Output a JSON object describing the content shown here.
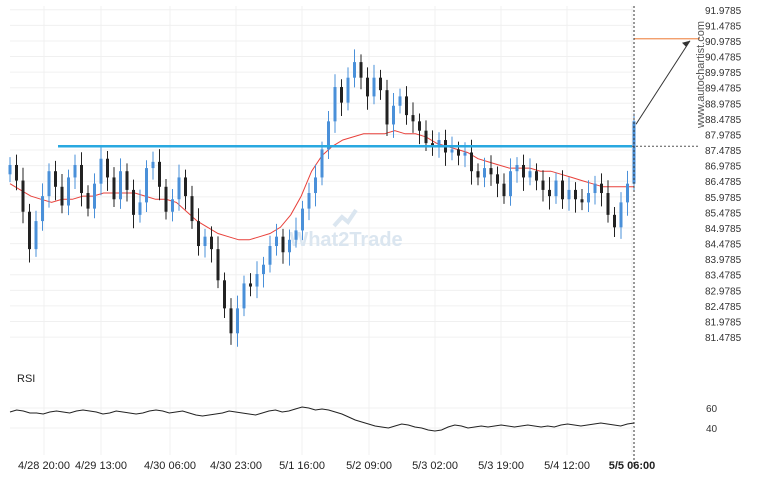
{
  "watermark": {
    "main": "What2Trade",
    "side": "www.autochartist.com"
  },
  "rsi": {
    "label": "RSI",
    "ticks": [
      "60",
      "40"
    ],
    "ylim": [
      20,
      80
    ]
  },
  "colors": {
    "candle": "#4a90d9",
    "candle_dark": "#222222",
    "level": "#29a8e0",
    "ma": "#e8413b",
    "target": "#f0925a",
    "rsi_line": "#222222"
  },
  "chart_data": {
    "type": "candlestick",
    "title": "",
    "ylim": [
      81.0,
      92.1
    ],
    "y_tick_labels": [
      "91.9785",
      "91.4785",
      "90.9785",
      "90.4785",
      "89.9785",
      "89.4785",
      "88.9785",
      "88.4785",
      "87.9785",
      "87.4785",
      "86.9785",
      "86.4785",
      "85.9785",
      "85.4785",
      "84.9785",
      "84.4785",
      "83.9785",
      "83.4785",
      "82.9785",
      "82.4785",
      "81.9785",
      "81.4785"
    ],
    "x_tick_labels": [
      "4/28 20:00",
      "4/29 13:00",
      "4/30 06:00",
      "4/30 23:00",
      "5/1 16:00",
      "5/2 09:00",
      "5/3 02:00",
      "5/3 19:00",
      "5/4 12:00",
      "5/5 06:00"
    ],
    "resistance_level": 87.6,
    "target_level": 91.05,
    "series": [
      {
        "values": [
          87.0,
          86.5,
          85.5,
          84.3,
          85.2,
          86.0,
          86.8,
          86.3,
          85.7,
          86.6,
          87.0,
          86.1,
          85.6,
          86.4,
          87.2,
          86.6,
          85.9,
          86.8,
          86.2,
          85.4,
          85.8,
          86.9,
          87.1,
          86.3,
          85.5,
          85.9,
          86.6,
          86.0,
          85.2,
          84.4,
          84.7,
          84.3,
          83.3,
          82.4,
          81.6,
          82.4,
          83.2,
          83.1,
          83.5,
          83.8,
          84.4,
          84.7,
          84.2,
          84.6,
          84.9,
          85.6,
          86.1,
          86.6,
          87.5,
          88.4,
          89.5,
          89.0,
          89.8,
          90.3,
          89.8,
          89.2,
          89.8,
          89.4,
          88.3,
          88.9,
          89.2,
          88.6,
          88.4,
          88.1,
          87.7,
          87.6,
          87.8,
          87.4,
          87.5,
          87.3,
          87.4,
          86.8,
          86.6,
          86.9,
          86.7,
          86.4,
          86.0,
          86.8,
          87.0,
          86.6,
          86.8,
          86.5,
          86.2,
          86.0,
          86.5,
          85.9,
          86.2,
          85.9,
          85.8,
          86.1,
          86.4,
          86.1,
          85.4,
          85.0,
          85.8,
          86.4,
          88.4
        ]
      }
    ],
    "moving_average": [
      86.4,
      86.2,
      86.0,
      85.9,
      85.8,
      85.9,
      85.9,
      86.0,
      86.0,
      86.1,
      86.1,
      86.1,
      86.1,
      86.0,
      85.9,
      85.9,
      85.8,
      85.5,
      85.2,
      85.0,
      84.8,
      84.7,
      84.6,
      84.6,
      84.7,
      84.8,
      85.0,
      85.4,
      86.0,
      86.8,
      87.3,
      87.6,
      87.8,
      87.9,
      88.0,
      88.0,
      88.0,
      88.1,
      88.0,
      88.0,
      87.9,
      87.7,
      87.6,
      87.5,
      87.4,
      87.2,
      87.1,
      87.0,
      86.9,
      86.9,
      86.9,
      86.8,
      86.8,
      86.7,
      86.6,
      86.5,
      86.4,
      86.3,
      86.3,
      86.3,
      86.3
    ],
    "rsi_values": [
      56,
      58,
      57,
      55,
      55,
      54,
      56,
      57,
      56,
      55,
      57,
      58,
      57,
      56,
      54,
      55,
      57,
      56,
      55,
      54,
      55,
      57,
      58,
      57,
      55,
      56,
      57,
      55,
      53,
      52,
      53,
      54,
      55,
      57,
      56,
      55,
      54,
      53,
      55,
      57,
      58,
      56,
      57,
      59,
      61,
      60,
      58,
      59,
      58,
      56,
      54,
      51,
      48,
      46,
      44,
      42,
      41,
      40,
      42,
      44,
      43,
      41,
      40,
      38,
      37,
      38,
      41,
      43,
      42,
      40,
      41,
      42,
      41,
      42,
      43,
      42,
      41,
      42,
      43,
      42,
      41,
      42,
      41,
      43,
      44,
      43,
      42,
      43,
      44,
      45,
      44,
      43,
      42,
      44,
      45
    ]
  }
}
